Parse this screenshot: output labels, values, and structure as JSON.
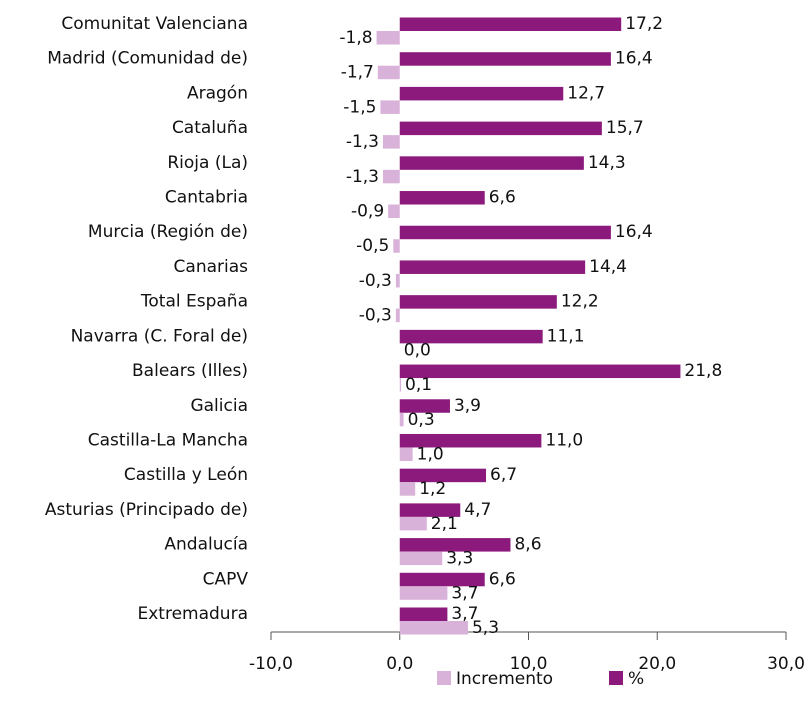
{
  "chart_data": {
    "type": "bar",
    "orientation": "horizontal",
    "categories": [
      "Comunitat Valenciana",
      "Madrid (Comunidad de)",
      "Aragón",
      "Cataluña",
      "Rioja (La)",
      "Cantabria",
      "Murcia (Región de)",
      "Canarias",
      "Total España",
      "Navarra (C. Foral de)",
      "Balears (Illes)",
      "Galicia",
      "Castilla-La Mancha",
      "Castilla y León",
      "Asturias (Principado de)",
      "Andalucía",
      "CAPV",
      "Extremadura"
    ],
    "series": [
      {
        "name": "Incremento",
        "color": "#d8b2d8",
        "values": [
          -1.8,
          -1.7,
          -1.5,
          -1.3,
          -1.3,
          -0.9,
          -0.5,
          -0.3,
          -0.3,
          0.0,
          0.1,
          0.3,
          1.0,
          1.2,
          2.1,
          3.3,
          3.7,
          5.3
        ],
        "value_labels": [
          "-1,8",
          "-1,7",
          "-1,5",
          "-1,3",
          "-1,3",
          "-0,9",
          "-0,5",
          "-0,3",
          "-0,3",
          "0,0",
          "0,1",
          "0,3",
          "1,0",
          "1,2",
          "2,1",
          "3,3",
          "3,7",
          "5,3"
        ]
      },
      {
        "name": "%",
        "color": "#8c1a7d",
        "values": [
          17.2,
          16.4,
          12.7,
          15.7,
          14.3,
          6.6,
          16.4,
          14.4,
          12.2,
          11.1,
          21.8,
          3.9,
          11.0,
          6.7,
          4.7,
          8.6,
          6.6,
          3.7
        ],
        "value_labels": [
          "17,2",
          "16,4",
          "12,7",
          "15,7",
          "14,3",
          "6,6",
          "16,4",
          "14,4",
          "12,2",
          "11,1",
          "21,8",
          "3,9",
          "11,0",
          "6,7",
          "4,7",
          "8,6",
          "6,6",
          "3,7"
        ]
      }
    ],
    "xlim": [
      -10,
      30
    ],
    "xticks": [
      {
        "value": -10,
        "label": "-10,0"
      },
      {
        "value": 0,
        "label": "0,0"
      },
      {
        "value": 10,
        "label": "10,0"
      },
      {
        "value": 20,
        "label": "20,0"
      },
      {
        "value": 30,
        "label": "30,0"
      }
    ],
    "legend": "bottom"
  }
}
